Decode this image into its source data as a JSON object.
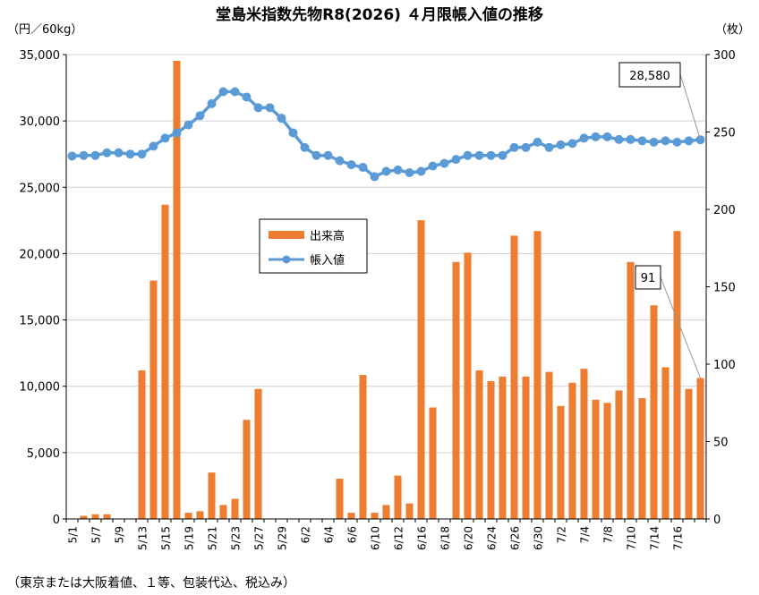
{
  "chart_data": {
    "type": "bar+line",
    "title": "堂島米指数先物R8(2026) ４月限帳入値の推移",
    "left_unit": "（円／60kg）",
    "right_unit": "（枚）",
    "footnote": "（東京または大阪着値、１等、包装代込、税込み）",
    "left_axis": {
      "min": 0,
      "max": 35000,
      "ticks": [
        "0",
        "5,000",
        "10,000",
        "15,000",
        "20,000",
        "25,000",
        "30,000",
        "35,000"
      ]
    },
    "right_axis": {
      "min": 0,
      "max": 300,
      "ticks": [
        "0",
        "50",
        "100",
        "150",
        "200",
        "250",
        "300"
      ]
    },
    "x_tick_labels": [
      "5/1",
      "5/7",
      "5/9",
      "5/13",
      "5/15",
      "5/19",
      "5/21",
      "5/23",
      "5/27",
      "5/29",
      "6/2",
      "6/4",
      "6/6",
      "6/10",
      "6/12",
      "6/16",
      "6/18",
      "6/20",
      "6/24",
      "6/26",
      "6/30",
      "7/2",
      "7/4",
      "7/8",
      "7/10",
      "7/14",
      "7/16"
    ],
    "legend": {
      "position": "center",
      "items": [
        "出来高",
        "帳入値"
      ]
    },
    "colors": {
      "bar": "#ED7D31",
      "line": "#5B9BD5",
      "grid": "#D0D0D0"
    },
    "series": [
      {
        "name": "出来高",
        "axis": "right",
        "type": "bar",
        "values": [
          0,
          2,
          3,
          3,
          0,
          0,
          96,
          154,
          203,
          296,
          4,
          5,
          30,
          9,
          13,
          64,
          84,
          0,
          0,
          0,
          0,
          0,
          0,
          26,
          4,
          93,
          4,
          9,
          28,
          10,
          193,
          72,
          0,
          166,
          172,
          96,
          89,
          92,
          183,
          92,
          186,
          95,
          73,
          88,
          97,
          77,
          75,
          83,
          166,
          78,
          138,
          98,
          186,
          84,
          91
        ]
      },
      {
        "name": "帳入値",
        "axis": "left",
        "type": "line",
        "values": [
          27350,
          27400,
          27400,
          27600,
          27600,
          27500,
          27500,
          28100,
          28700,
          29100,
          29700,
          30400,
          31300,
          32200,
          32200,
          31800,
          31000,
          31000,
          30200,
          29100,
          28000,
          27400,
          27400,
          27000,
          26700,
          26500,
          25800,
          26200,
          26300,
          26100,
          26200,
          26600,
          26800,
          27100,
          27400,
          27400,
          27400,
          27400,
          28000,
          28000,
          28400,
          28000,
          28200,
          28300,
          28700,
          28800,
          28800,
          28600,
          28600,
          28500,
          28400,
          28500,
          28400,
          28500,
          28580
        ]
      }
    ],
    "annotations": [
      {
        "text": "28,580",
        "series": "帳入値",
        "index": 54
      },
      {
        "text": "91",
        "series": "出来高",
        "index": 54
      }
    ]
  }
}
